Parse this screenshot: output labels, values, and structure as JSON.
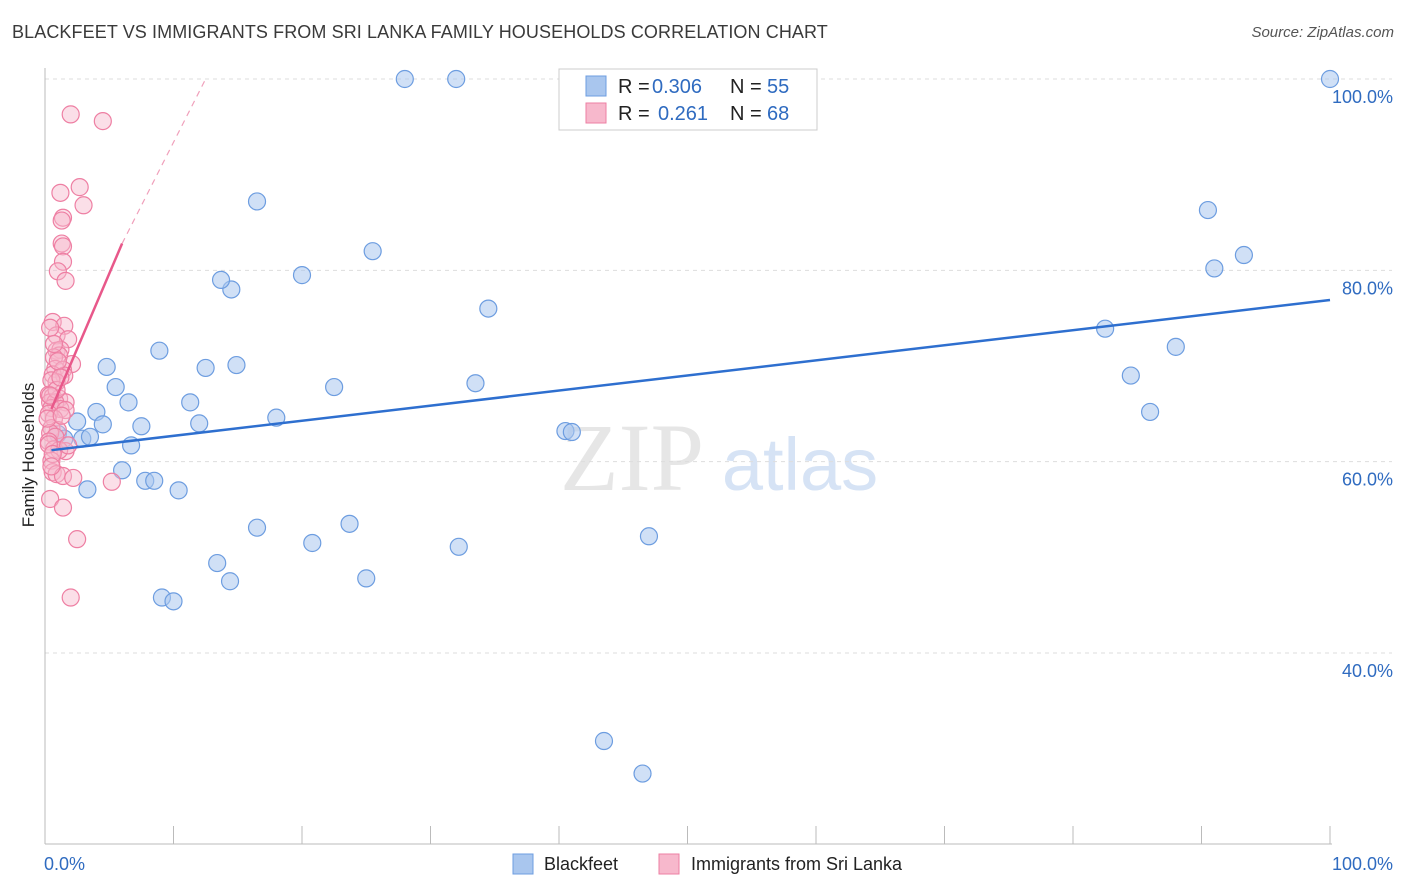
{
  "title": "BLACKFEET VS IMMIGRANTS FROM SRI LANKA FAMILY HOUSEHOLDS CORRELATION CHART",
  "source": "Source: ZipAtlas.com",
  "watermark": {
    "zip": "ZIP",
    "atlas": "atlas"
  },
  "colors": {
    "blue_fill": "#a9c6ee",
    "blue_stroke": "#6d9de0",
    "blue_line": "#2e6fcf",
    "pink_fill": "#f7b8cc",
    "pink_stroke": "#ee7fa3",
    "pink_line": "#e8588a",
    "label_blue": "#2f6bc0",
    "grid": "#dddddd"
  },
  "legend": {
    "r_label": "R =",
    "n_label": "N =",
    "rows": [
      {
        "series": "Blackfeet",
        "r": "0.306",
        "n": "55"
      },
      {
        "series": "Immigrants from Sri Lanka",
        "r": "0.261",
        "n": "68"
      }
    ]
  },
  "bottom_legend": [
    "Blackfeet",
    "Immigrants from Sri Lanka"
  ],
  "chart_data": {
    "type": "scatter",
    "title": "BLACKFEET VS IMMIGRANTS FROM SRI LANKA FAMILY HOUSEHOLDS CORRELATION CHART",
    "xlabel": "",
    "ylabel": "Family Households",
    "xlim": [
      0,
      100
    ],
    "ylim": [
      20,
      101
    ],
    "x_tick_labels": [
      {
        "value": 0,
        "label": "0.0%"
      },
      {
        "value": 100,
        "label": "100.0%"
      }
    ],
    "y_tick_labels": [
      {
        "value": 40,
        "label": "40.0%"
      },
      {
        "value": 60,
        "label": "60.0%"
      },
      {
        "value": 80,
        "label": "80.0%"
      },
      {
        "value": 100,
        "label": "100.0%"
      }
    ],
    "series": [
      {
        "name": "Blackfeet",
        "r": 0.306,
        "n": 55,
        "trend": {
          "x": [
            0.5,
            100
          ],
          "y": [
            61.2,
            76.9
          ],
          "dashed_extension": false
        },
        "points": [
          [
            28,
            100
          ],
          [
            32,
            100
          ],
          [
            100,
            100
          ],
          [
            16.5,
            87.2
          ],
          [
            90.5,
            86.3
          ],
          [
            25.5,
            82.0
          ],
          [
            93.3,
            81.6
          ],
          [
            91.0,
            80.2
          ],
          [
            20,
            79.5
          ],
          [
            14.5,
            78.0
          ],
          [
            13.7,
            79.0
          ],
          [
            34.5,
            76.0
          ],
          [
            82.5,
            73.9
          ],
          [
            88,
            72.0
          ],
          [
            8.9,
            71.6
          ],
          [
            4.8,
            69.9
          ],
          [
            12.5,
            69.8
          ],
          [
            14.9,
            70.1
          ],
          [
            84.5,
            69.0
          ],
          [
            33.5,
            68.2
          ],
          [
            22.5,
            67.8
          ],
          [
            5.5,
            67.8
          ],
          [
            6.5,
            66.2
          ],
          [
            11.3,
            66.2
          ],
          [
            86,
            65.2
          ],
          [
            4,
            65.2
          ],
          [
            18,
            64.6
          ],
          [
            2.5,
            64.2
          ],
          [
            4.5,
            63.9
          ],
          [
            7.5,
            63.7
          ],
          [
            40.5,
            63.2
          ],
          [
            41,
            63.1
          ],
          [
            1.0,
            62.9
          ],
          [
            2.9,
            62.4
          ],
          [
            1.5,
            62.4
          ],
          [
            6.7,
            61.7
          ],
          [
            6.0,
            59.1
          ],
          [
            7.8,
            58.0
          ],
          [
            8.5,
            58.0
          ],
          [
            3.3,
            57.1
          ],
          [
            10.4,
            57.0
          ],
          [
            23.7,
            53.5
          ],
          [
            16.5,
            53.1
          ],
          [
            47,
            52.2
          ],
          [
            20.8,
            51.5
          ],
          [
            32.2,
            51.1
          ],
          [
            13.4,
            49.4
          ],
          [
            25,
            47.8
          ],
          [
            14.4,
            47.5
          ],
          [
            9.1,
            45.8
          ],
          [
            10,
            45.4
          ],
          [
            43.5,
            30.8
          ],
          [
            46.5,
            27.4
          ],
          [
            3.5,
            62.6
          ],
          [
            12,
            64.0
          ]
        ]
      },
      {
        "name": "Immigrants from Sri Lanka",
        "r": 0.261,
        "n": 68,
        "trend": {
          "x": [
            0.5,
            6
          ],
          "y": [
            65.5,
            82.8
          ],
          "dashed_extension": true,
          "dash_end": [
            12.5,
            100
          ]
        },
        "points": [
          [
            2.0,
            96.3
          ],
          [
            4.5,
            95.6
          ],
          [
            2.7,
            88.7
          ],
          [
            1.2,
            88.1
          ],
          [
            3.0,
            86.8
          ],
          [
            1.4,
            85.5
          ],
          [
            1.3,
            85.2
          ],
          [
            1.3,
            82.8
          ],
          [
            1.4,
            82.5
          ],
          [
            1.4,
            80.9
          ],
          [
            1.0,
            79.9
          ],
          [
            1.6,
            78.9
          ],
          [
            0.6,
            74.6
          ],
          [
            1.5,
            74.2
          ],
          [
            0.9,
            73.2
          ],
          [
            1.8,
            72.8
          ],
          [
            0.9,
            71.6
          ],
          [
            1.2,
            71.7
          ],
          [
            1.1,
            71.1
          ],
          [
            0.7,
            70.9
          ],
          [
            2.1,
            70.2
          ],
          [
            0.8,
            69.7
          ],
          [
            1.4,
            69.6
          ],
          [
            0.6,
            69.1
          ],
          [
            1.5,
            69.0
          ],
          [
            0.9,
            68.3
          ],
          [
            0.5,
            68.5
          ],
          [
            0.3,
            67.0
          ],
          [
            0.6,
            66.8
          ],
          [
            1.1,
            66.6
          ],
          [
            0.4,
            66.2
          ],
          [
            1.6,
            66.2
          ],
          [
            0.8,
            66.2
          ],
          [
            0.5,
            65.6
          ],
          [
            1.2,
            65.5
          ],
          [
            1.6,
            65.4
          ],
          [
            0.3,
            65.0
          ],
          [
            0.7,
            64.5
          ],
          [
            0.5,
            63.5
          ],
          [
            1.0,
            63.3
          ],
          [
            0.4,
            63.0
          ],
          [
            0.8,
            62.6
          ],
          [
            0.3,
            62.1
          ],
          [
            1.6,
            61.1
          ],
          [
            0.7,
            61.3
          ],
          [
            1.1,
            61.2
          ],
          [
            0.5,
            60.1
          ],
          [
            0.6,
            58.9
          ],
          [
            0.9,
            58.7
          ],
          [
            1.4,
            58.5
          ],
          [
            2.2,
            58.3
          ],
          [
            5.2,
            57.9
          ],
          [
            0.4,
            56.1
          ],
          [
            1.4,
            55.2
          ],
          [
            2.5,
            51.9
          ],
          [
            2.0,
            45.8
          ],
          [
            0.4,
            74.0
          ],
          [
            0.2,
            64.5
          ],
          [
            0.3,
            61.8
          ],
          [
            0.9,
            67.5
          ],
          [
            1.3,
            64.8
          ],
          [
            0.6,
            60.8
          ],
          [
            1.0,
            70.5
          ],
          [
            0.4,
            66.9
          ],
          [
            1.8,
            61.7
          ],
          [
            0.7,
            72.3
          ],
          [
            1.2,
            68.8
          ],
          [
            0.5,
            59.5
          ]
        ]
      }
    ]
  }
}
